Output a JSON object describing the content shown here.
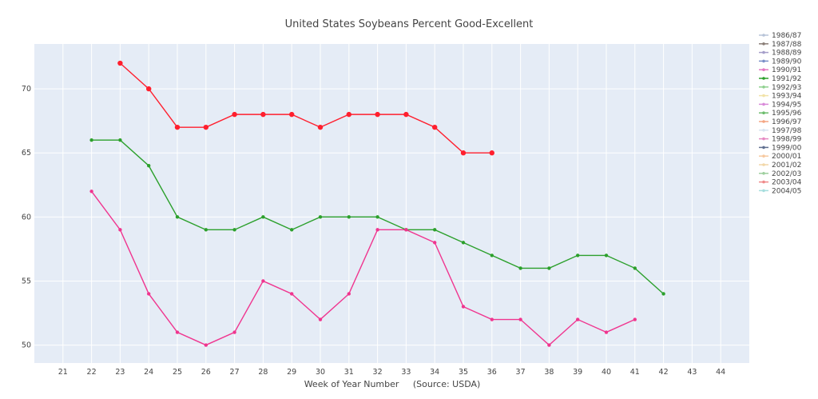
{
  "chart_data": {
    "type": "line",
    "title": "United States Soybeans Percent Good-Excellent",
    "xlabel": "Week of Year Number     (Source: USDA)",
    "ylabel": "",
    "x_ticks": [
      21,
      22,
      23,
      24,
      25,
      26,
      27,
      28,
      29,
      30,
      31,
      32,
      33,
      34,
      35,
      36,
      37,
      38,
      39,
      40,
      41,
      42,
      43,
      44
    ],
    "y_ticks": [
      50,
      55,
      60,
      65,
      70
    ],
    "xlim": [
      20,
      45
    ],
    "ylim": [
      48.6,
      73.5
    ],
    "grid": true,
    "legend_position": "right",
    "legend": [
      {
        "name": "1986/87",
        "color": "#b8c4d8"
      },
      {
        "name": "1987/88",
        "color": "#8a7e77"
      },
      {
        "name": "1988/89",
        "color": "#a59ec9"
      },
      {
        "name": "1989/90",
        "color": "#7a8fc8"
      },
      {
        "name": "1990/91",
        "color": "#e377c2"
      },
      {
        "name": "1991/92",
        "color": "#2ca02c"
      },
      {
        "name": "1992/93",
        "color": "#8fd18f"
      },
      {
        "name": "1993/94",
        "color": "#f2e3a8"
      },
      {
        "name": "1994/95",
        "color": "#d98ad9"
      },
      {
        "name": "1995/96",
        "color": "#6dbd6d"
      },
      {
        "name": "1996/97",
        "color": "#f4a582"
      },
      {
        "name": "1997/98",
        "color": "#d8e4f0"
      },
      {
        "name": "1998/99",
        "color": "#e78ac3"
      },
      {
        "name": "1999/00",
        "color": "#607090"
      },
      {
        "name": "2000/01",
        "color": "#f7c9a0"
      },
      {
        "name": "2001/02",
        "color": "#f2d7a8"
      },
      {
        "name": "2002/03",
        "color": "#9ecf9e"
      },
      {
        "name": "2003/04",
        "color": "#ef8a8a"
      },
      {
        "name": "2004/05",
        "color": "#a6dede"
      }
    ],
    "series": [
      {
        "name": "2004/05 (red)",
        "color": "#ff1f2e",
        "x": [
          23,
          24,
          25,
          26,
          27,
          28,
          29,
          30,
          31,
          32,
          33,
          34,
          35,
          36
        ],
        "values": [
          72,
          70,
          67,
          67,
          68,
          68,
          68,
          67,
          68,
          68,
          68,
          67,
          65,
          65
        ]
      },
      {
        "name": "green",
        "color": "#2ca02c",
        "x": [
          22,
          23,
          24,
          25,
          26,
          27,
          28,
          29,
          30,
          31,
          32,
          33,
          34,
          35,
          36,
          37,
          38,
          39,
          40,
          41,
          42
        ],
        "values": [
          66,
          66,
          64,
          60,
          59,
          59,
          60,
          59,
          60,
          60,
          60,
          59,
          59,
          58,
          57,
          56,
          56,
          57,
          57,
          56,
          54
        ]
      },
      {
        "name": "pink",
        "color": "#f0358f",
        "x": [
          22,
          23,
          24,
          25,
          26,
          27,
          28,
          29,
          30,
          31,
          32,
          33,
          34,
          35,
          36,
          37,
          38,
          39,
          40,
          41
        ],
        "values": [
          62,
          59,
          54,
          51,
          50,
          51,
          55,
          54,
          52,
          54,
          59,
          59,
          58,
          53,
          52,
          52,
          50,
          52,
          51,
          52
        ]
      }
    ]
  }
}
